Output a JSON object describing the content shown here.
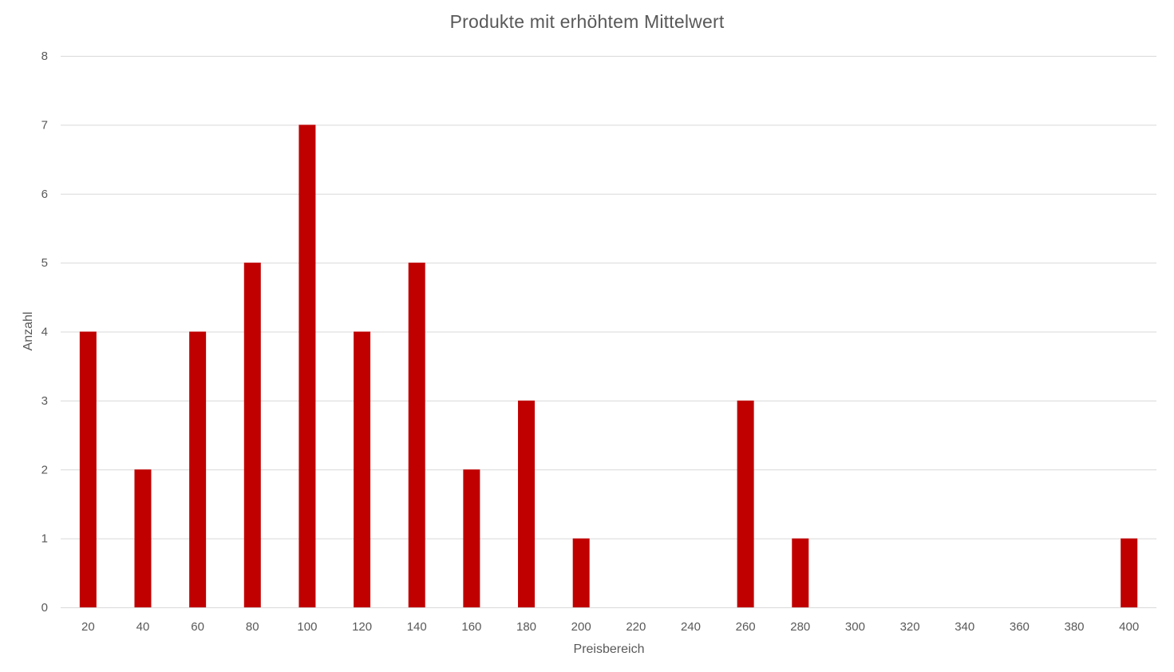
{
  "chart_data": {
    "type": "bar",
    "title": "Produkte mit erhöhtem Mittelwert",
    "xlabel": "Preisbereich",
    "ylabel": "Anzahl",
    "categories": [
      "20",
      "40",
      "60",
      "80",
      "100",
      "120",
      "140",
      "160",
      "180",
      "200",
      "220",
      "240",
      "260",
      "280",
      "300",
      "320",
      "340",
      "360",
      "380",
      "400"
    ],
    "values": [
      4,
      2,
      4,
      5,
      7,
      4,
      5,
      2,
      3,
      1,
      0,
      0,
      3,
      1,
      0,
      0,
      0,
      0,
      0,
      1
    ],
    "ylim": [
      0,
      8
    ],
    "yticks": [
      "0",
      "1",
      "2",
      "3",
      "4",
      "5",
      "6",
      "7",
      "8"
    ],
    "grid": true,
    "legend": "none",
    "bar_color": "#C00000",
    "grid_color": "#D9D9D9",
    "text_color": "#595959"
  }
}
